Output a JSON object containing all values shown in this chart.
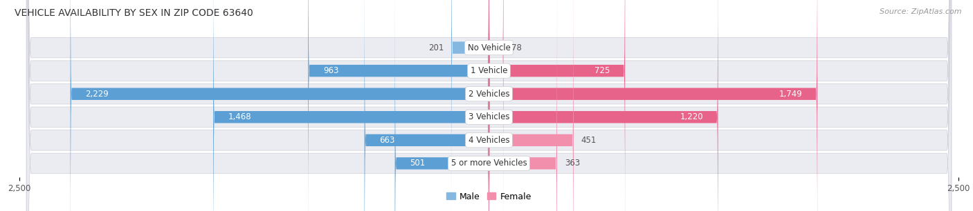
{
  "title": "VEHICLE AVAILABILITY BY SEX IN ZIP CODE 63640",
  "source": "Source: ZipAtlas.com",
  "categories": [
    "No Vehicle",
    "1 Vehicle",
    "2 Vehicles",
    "3 Vehicles",
    "4 Vehicles",
    "5 or more Vehicles"
  ],
  "male_values": [
    201,
    963,
    2229,
    1468,
    663,
    501
  ],
  "female_values": [
    78,
    725,
    1749,
    1220,
    451,
    363
  ],
  "male_color": "#85b8e0",
  "female_color": "#f28fac",
  "male_color_large": "#5b9fd4",
  "female_color_large": "#e8638a",
  "bar_bg_color": "#ebebf2",
  "axis_max": 2500,
  "legend_male": "Male",
  "legend_female": "Female",
  "title_fontsize": 10,
  "source_fontsize": 8,
  "label_fontsize": 8.5,
  "category_fontsize": 8.5,
  "tick_fontsize": 8.5,
  "large_threshold": 500
}
